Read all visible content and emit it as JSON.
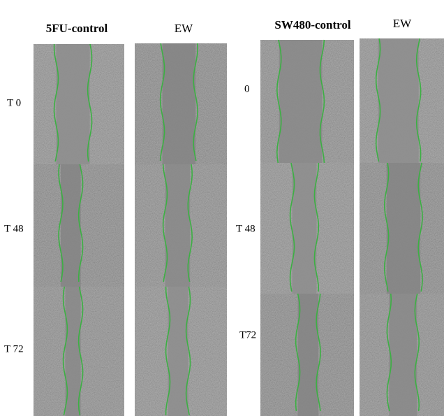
{
  "left_group": {
    "headers": [
      "5FU-control",
      "EW"
    ],
    "row_labels": [
      "T 0",
      "T 48",
      "T 72"
    ]
  },
  "right_group": {
    "headers": [
      "SW480-control",
      "EW"
    ],
    "row_labels": [
      "0",
      "T 48",
      "T72"
    ]
  }
}
